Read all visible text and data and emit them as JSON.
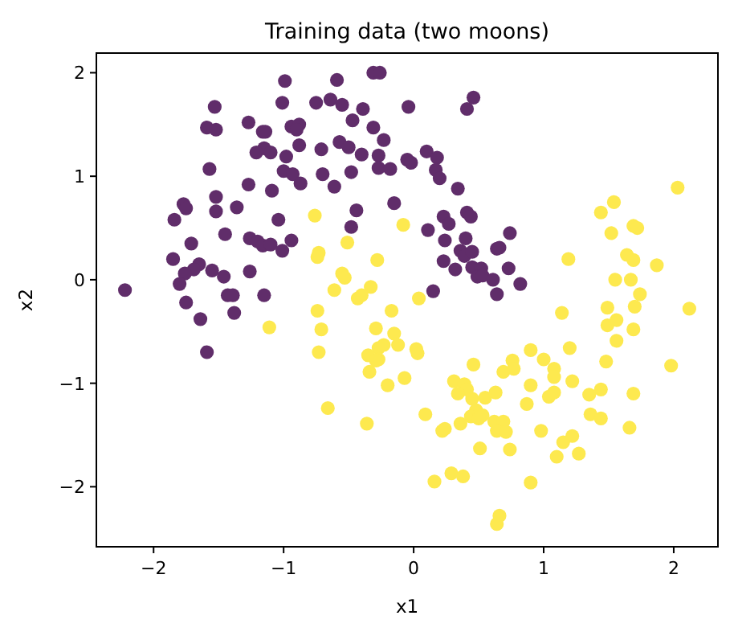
{
  "chart_data": {
    "type": "scatter",
    "title": "Training data (two moons)",
    "xlabel": "x1",
    "ylabel": "x2",
    "xlim": [
      -2.44,
      2.34
    ],
    "ylim": [
      -2.58,
      2.19
    ],
    "xticks": [
      -2,
      -1,
      0,
      1,
      2
    ],
    "yticks": [
      -2,
      -1,
      0,
      1,
      2
    ],
    "grid": false,
    "marker": "circle",
    "series": [
      {
        "color": "#602d6a",
        "x": [
          -2.22,
          -0.99,
          -1.01,
          -1.53,
          -1.59,
          -1.52,
          -1.27,
          -1.16,
          -1.14,
          -0.94,
          -0.88,
          -0.9,
          -1.15,
          -1.21,
          -1.1,
          -0.98,
          -0.88,
          -1.57,
          -1.0,
          -0.93,
          -0.87,
          -1.27,
          -1.09,
          -1.52,
          -1.77,
          -1.75,
          -1.36,
          -1.52,
          -1.84,
          -1.04,
          -1.71,
          -1.45,
          -1.26,
          -1.2,
          -1.16,
          -1.1,
          -0.94,
          -1.01,
          -1.85,
          -1.65,
          -1.69,
          -1.76,
          -1.55,
          -1.46,
          -1.26,
          -1.8,
          -1.75,
          -1.43,
          -1.39,
          -1.15,
          -1.64,
          -1.38,
          -1.59,
          -0.31,
          -0.26,
          -0.59,
          -0.75,
          -0.64,
          -0.55,
          -0.39,
          -0.04,
          0.46,
          0.41,
          -0.47,
          -0.31,
          -0.71,
          -0.57,
          -0.5,
          -0.23,
          -0.4,
          -0.27,
          0.1,
          0.18,
          -0.05,
          -0.02,
          -0.27,
          -0.18,
          0.17,
          0.2,
          -0.7,
          -0.48,
          -0.61,
          0.34,
          -0.15,
          -0.44,
          -0.48,
          0.23,
          0.27,
          0.41,
          0.44,
          0.11,
          0.74,
          0.24,
          0.4,
          0.36,
          0.39,
          0.45,
          0.64,
          0.66,
          0.23,
          0.32,
          0.45,
          0.52,
          0.49,
          0.53,
          0.61,
          0.73,
          0.15,
          0.64,
          0.82
        ],
        "values": [
          -0.1,
          1.92,
          1.71,
          1.67,
          1.47,
          1.45,
          1.52,
          1.43,
          1.43,
          1.48,
          1.5,
          1.45,
          1.27,
          1.23,
          1.23,
          1.19,
          1.3,
          1.07,
          1.05,
          1.02,
          0.93,
          0.92,
          0.86,
          0.8,
          0.73,
          0.69,
          0.7,
          0.66,
          0.58,
          0.58,
          0.35,
          0.44,
          0.4,
          0.37,
          0.33,
          0.34,
          0.38,
          0.28,
          0.2,
          0.15,
          0.1,
          0.06,
          0.09,
          0.03,
          0.08,
          -0.04,
          -0.22,
          -0.15,
          -0.15,
          -0.15,
          -0.38,
          -0.32,
          -0.7,
          2.0,
          2.0,
          1.93,
          1.71,
          1.74,
          1.69,
          1.65,
          1.67,
          1.76,
          1.65,
          1.54,
          1.47,
          1.26,
          1.33,
          1.28,
          1.35,
          1.21,
          1.2,
          1.24,
          1.18,
          1.16,
          1.13,
          1.08,
          1.07,
          1.06,
          0.98,
          1.02,
          1.04,
          0.9,
          0.88,
          0.74,
          0.67,
          0.51,
          0.61,
          0.54,
          0.65,
          0.61,
          0.48,
          0.45,
          0.38,
          0.4,
          0.28,
          0.23,
          0.27,
          0.3,
          0.31,
          0.18,
          0.1,
          0.12,
          0.11,
          0.03,
          0.04,
          0.0,
          0.11,
          -0.11,
          -0.14,
          -0.04
        ]
      },
      {
        "color": "#fde94f",
        "x": [
          -1.11,
          -0.76,
          -0.08,
          -0.51,
          -0.73,
          -0.74,
          -0.28,
          -0.55,
          -0.53,
          -0.33,
          -0.61,
          -0.43,
          -0.4,
          0.04,
          2.03,
          1.54,
          1.44,
          1.69,
          1.72,
          1.52,
          1.19,
          1.64,
          1.69,
          1.87,
          1.55,
          1.67,
          1.74,
          1.49,
          1.7,
          2.12,
          -0.74,
          -0.17,
          -0.71,
          -0.29,
          -0.15,
          -0.23,
          -0.27,
          -0.12,
          -0.73,
          -0.35,
          -0.27,
          -0.29,
          0.02,
          0.03,
          -0.34,
          -0.07,
          -0.2,
          0.46,
          0.69,
          0.76,
          0.31,
          0.39,
          0.41,
          0.34,
          0.45,
          0.55,
          0.63,
          0.48,
          0.53,
          0.44,
          0.5,
          -0.66,
          -0.36,
          0.09,
          0.22,
          0.24,
          0.36,
          0.62,
          0.69,
          0.64,
          0.71,
          0.51,
          0.74,
          0.16,
          0.29,
          0.38,
          0.66,
          0.64,
          1.14,
          1.49,
          1.56,
          1.69,
          1.56,
          0.9,
          1.2,
          0.77,
          1.0,
          1.08,
          1.08,
          1.48,
          1.98,
          0.9,
          1.22,
          0.87,
          1.04,
          1.08,
          1.35,
          1.44,
          1.69,
          1.36,
          1.44,
          1.66,
          0.98,
          1.22,
          1.15,
          1.1,
          1.27,
          0.9
        ],
        "values": [
          -0.46,
          0.62,
          0.53,
          0.36,
          0.26,
          0.22,
          0.19,
          0.06,
          0.02,
          -0.07,
          -0.1,
          -0.18,
          -0.15,
          -0.18,
          0.89,
          0.75,
          0.65,
          0.52,
          0.5,
          0.45,
          0.2,
          0.24,
          0.19,
          0.14,
          0.0,
          0.0,
          -0.14,
          -0.27,
          -0.26,
          -0.28,
          -0.3,
          -0.3,
          -0.48,
          -0.47,
          -0.52,
          -0.63,
          -0.66,
          -0.63,
          -0.7,
          -0.73,
          -0.77,
          -0.78,
          -0.67,
          -0.71,
          -0.89,
          -0.95,
          -1.02,
          -0.82,
          -0.89,
          -0.78,
          -0.98,
          -1.01,
          -1.06,
          -1.1,
          -1.15,
          -1.14,
          -1.09,
          -1.26,
          -1.31,
          -1.32,
          -1.34,
          -1.24,
          -1.39,
          -1.3,
          -1.46,
          -1.44,
          -1.39,
          -1.37,
          -1.37,
          -1.46,
          -1.47,
          -1.63,
          -1.64,
          -1.95,
          -1.87,
          -1.9,
          -2.28,
          -2.36,
          -0.32,
          -0.44,
          -0.39,
          -0.48,
          -0.59,
          -0.68,
          -0.66,
          -0.86,
          -0.77,
          -0.86,
          -0.94,
          -0.79,
          -0.83,
          -1.02,
          -0.98,
          -1.2,
          -1.13,
          -1.09,
          -1.11,
          -1.06,
          -1.1,
          -1.3,
          -1.34,
          -1.43,
          -1.46,
          -1.51,
          -1.57,
          -1.71,
          -1.68,
          -1.96
        ]
      }
    ]
  }
}
